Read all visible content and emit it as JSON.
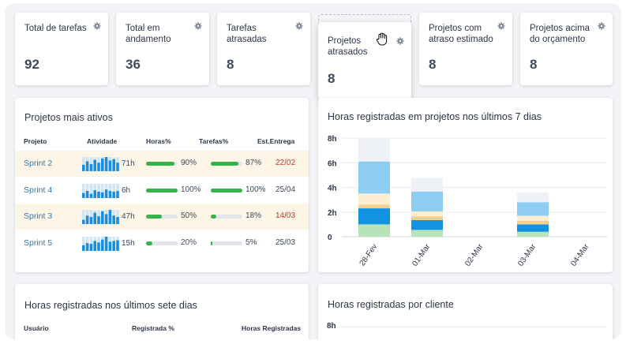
{
  "kpis": [
    {
      "label": "Total de tarefas",
      "value": "92"
    },
    {
      "label": "Total em andamento",
      "value": "36"
    },
    {
      "label": "Tarefas atrasadas",
      "value": "8"
    },
    {
      "label": "Projetos atrasados",
      "value": "8"
    },
    {
      "label": "Projetos com atraso estimado",
      "value": "8"
    },
    {
      "label": "Projetos acima do orçamento",
      "value": "8"
    }
  ],
  "active_projects": {
    "title": "Projetos mais ativos",
    "columns": [
      "Projeto",
      "Atividade",
      "Horas%",
      "Tarefas%",
      "Est.Entrega"
    ],
    "rows": [
      {
        "project": "Sprint 2",
        "hours": "71h",
        "hours_pct": "90%",
        "hours_fill": 0.9,
        "tasks_pct": "87%",
        "tasks_fill": 0.87,
        "due": "22/02",
        "late": true,
        "highlight": true,
        "activity": [
          0.45,
          0.7,
          0.5,
          0.8,
          0.6,
          0.9,
          1.0,
          0.75,
          0.85,
          0.6
        ]
      },
      {
        "project": "Sprint 4",
        "hours": "6h",
        "hours_pct": "100%",
        "hours_fill": 1.0,
        "tasks_pct": "100%",
        "tasks_fill": 1.0,
        "due": "25/04",
        "late": false,
        "highlight": false,
        "activity": [
          0.35,
          0.5,
          0.3,
          0.55,
          0.45,
          0.4,
          0.6,
          0.5,
          0.45,
          0.5
        ]
      },
      {
        "project": "Sprint 3",
        "hours": "47h",
        "hours_pct": "50%",
        "hours_fill": 0.5,
        "tasks_pct": "18%",
        "tasks_fill": 0.18,
        "due": "14/03",
        "late": true,
        "highlight": true,
        "activity": [
          0.3,
          0.6,
          0.5,
          0.8,
          0.55,
          0.9,
          0.7,
          1.0,
          0.6,
          0.5
        ]
      },
      {
        "project": "Sprint 5",
        "hours": "15h",
        "hours_pct": "20%",
        "hours_fill": 0.2,
        "tasks_pct": "5%",
        "tasks_fill": 0.05,
        "due": "25/03",
        "late": false,
        "highlight": false,
        "activity": [
          0.4,
          0.55,
          0.5,
          0.7,
          0.6,
          0.8,
          1.0,
          0.65,
          0.7,
          0.75
        ]
      }
    ]
  },
  "hours_chart": {
    "title": "Horas registradas em projetos nos últimos 7 dias",
    "chart_data": {
      "type": "bar",
      "stacked": true,
      "categories": [
        "28-Fev",
        "01-Mar",
        "02-Mar",
        "03-Mar",
        "04-Mar"
      ],
      "ylim": [
        0,
        8
      ],
      "yticks": [
        "0",
        "2h",
        "4h",
        "6h",
        "8h"
      ],
      "series": [
        {
          "color": "#b7e3b8",
          "values": [
            1.0,
            0.55,
            0,
            0.4,
            0
          ]
        },
        {
          "color": "#1293e2",
          "values": [
            1.3,
            0.8,
            0,
            0.6,
            0
          ]
        },
        {
          "color": "#f6d08a",
          "values": [
            0.3,
            0.3,
            0,
            0.3,
            0
          ]
        },
        {
          "color": "#fdeed2",
          "values": [
            0.9,
            0.4,
            0,
            0.4,
            0
          ]
        },
        {
          "color": "#8ecdf3",
          "values": [
            2.6,
            1.6,
            0,
            1.1,
            0
          ]
        },
        {
          "color": "#eef1f5",
          "values": [
            1.9,
            1.1,
            0,
            0.8,
            0
          ]
        }
      ]
    }
  },
  "weekly_users": {
    "title": "Horas registradas nos últimos sete dias",
    "columns": [
      "Usuário",
      "Registrada %",
      "Horas Registradas"
    ]
  },
  "by_client": {
    "title": "Horas registradas por cliente",
    "ytick_top": "8h"
  },
  "icons": {
    "gear": "gear-icon",
    "cursor": "hand-grab-cursor-icon"
  }
}
